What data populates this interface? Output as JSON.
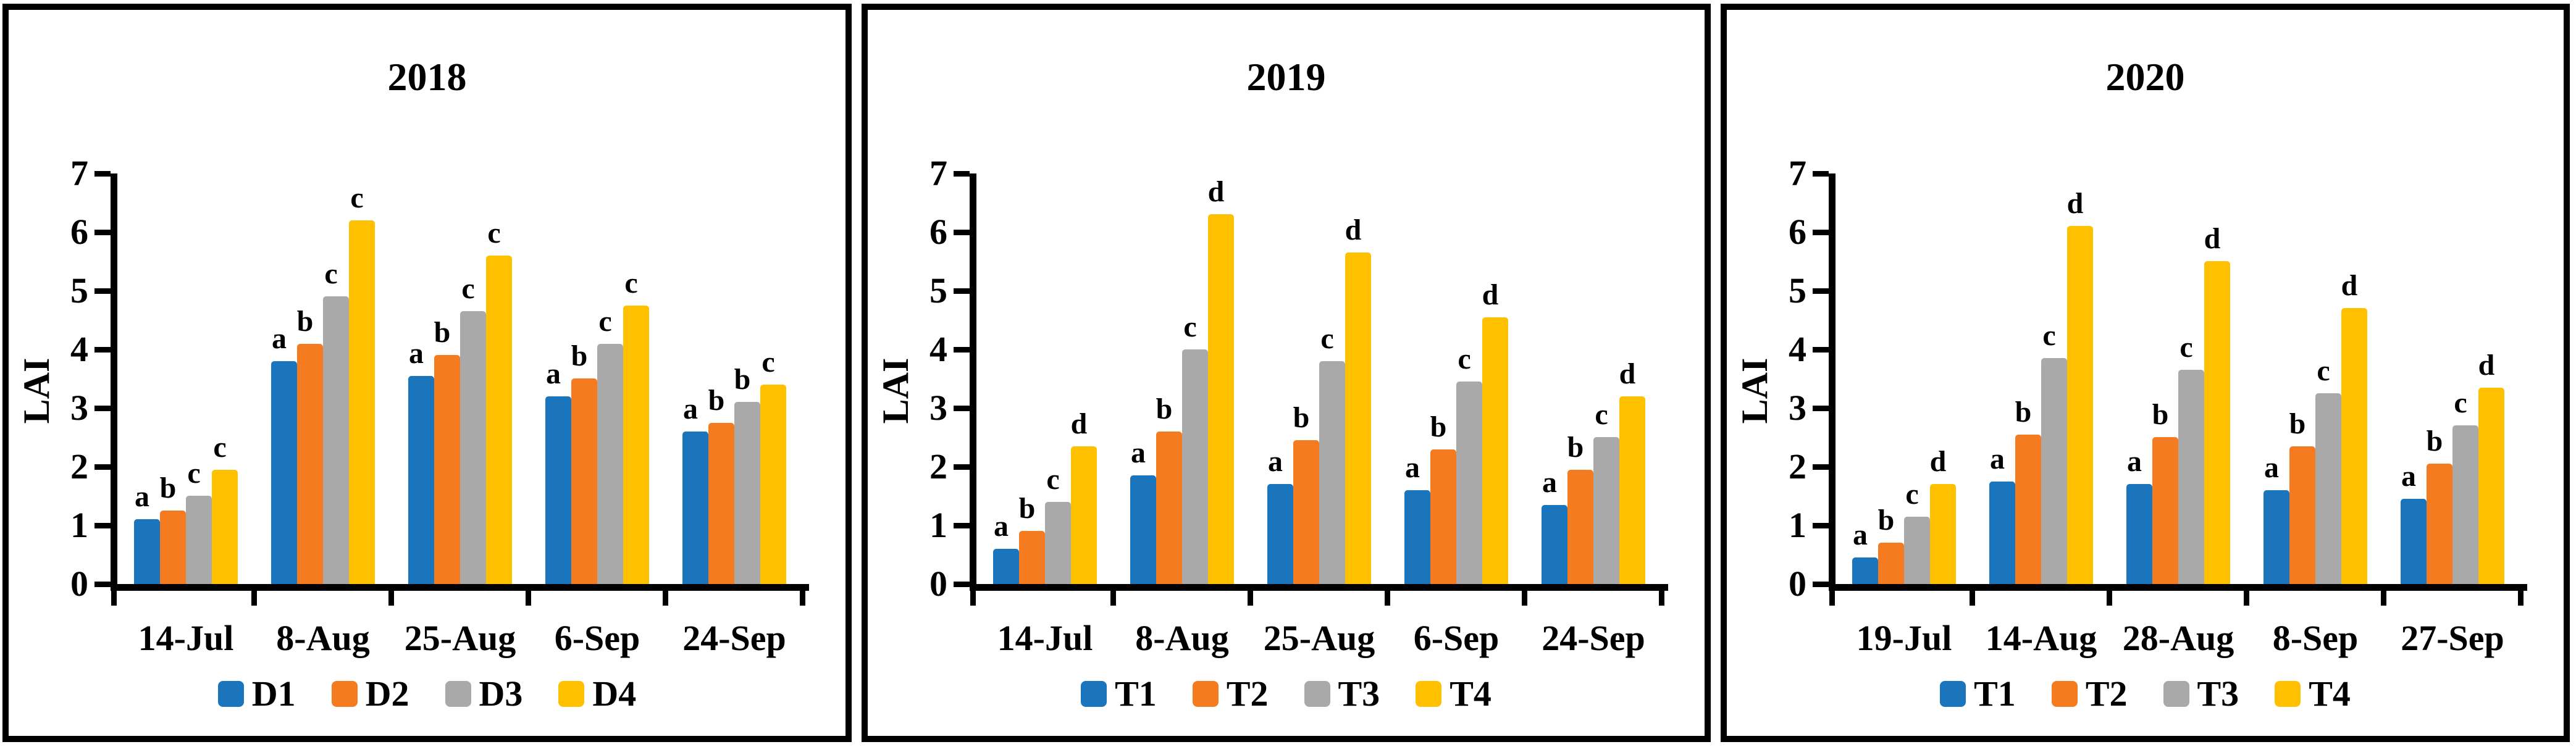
{
  "page": {
    "background": "#ffffff"
  },
  "colors": {
    "series": [
      "#1B75BC",
      "#F47B20",
      "#A9A9A9",
      "#FFC000"
    ],
    "axis": "#000000",
    "text": "#000000"
  },
  "chart_data": [
    {
      "type": "bar",
      "title": "2018",
      "ylabel": "LAI",
      "xlabel": "",
      "ylim": [
        0,
        7
      ],
      "yticks": [
        0,
        1,
        2,
        3,
        4,
        5,
        6,
        7
      ],
      "grid": false,
      "legend_position": "bottom",
      "categories": [
        "14-Jul",
        "8-Aug",
        "25-Aug",
        "6-Sep",
        "24-Sep"
      ],
      "series": [
        {
          "name": "D1",
          "values": [
            1.1,
            3.8,
            3.55,
            3.2,
            2.6
          ]
        },
        {
          "name": "D2",
          "values": [
            1.25,
            4.1,
            3.9,
            3.5,
            2.75
          ]
        },
        {
          "name": "D3",
          "values": [
            1.5,
            4.9,
            4.65,
            4.1,
            3.1
          ]
        },
        {
          "name": "D4",
          "values": [
            1.95,
            6.2,
            5.6,
            4.75,
            3.4
          ]
        }
      ],
      "sig_letters": [
        [
          "a",
          "b",
          "c",
          "c"
        ],
        [
          "a",
          "b",
          "c",
          "c"
        ],
        [
          "a",
          "b",
          "c",
          "c"
        ],
        [
          "a",
          "b",
          "c",
          "c"
        ],
        [
          "a",
          "b",
          "b",
          "c"
        ]
      ]
    },
    {
      "type": "bar",
      "title": "2019",
      "ylabel": "LAI",
      "xlabel": "",
      "ylim": [
        0,
        7
      ],
      "yticks": [
        0,
        1,
        2,
        3,
        4,
        5,
        6,
        7
      ],
      "grid": false,
      "legend_position": "bottom",
      "categories": [
        "14-Jul",
        "8-Aug",
        "25-Aug",
        "6-Sep",
        "24-Sep"
      ],
      "series": [
        {
          "name": "T1",
          "values": [
            0.6,
            1.85,
            1.7,
            1.6,
            1.35
          ]
        },
        {
          "name": "T2",
          "values": [
            0.9,
            2.6,
            2.45,
            2.3,
            1.95
          ]
        },
        {
          "name": "T3",
          "values": [
            1.4,
            4.0,
            3.8,
            3.45,
            2.5
          ]
        },
        {
          "name": "T4",
          "values": [
            2.35,
            6.3,
            5.65,
            4.55,
            3.2
          ]
        }
      ],
      "sig_letters": [
        [
          "a",
          "b",
          "c",
          "d"
        ],
        [
          "a",
          "b",
          "c",
          "d"
        ],
        [
          "a",
          "b",
          "c",
          "d"
        ],
        [
          "a",
          "b",
          "c",
          "d"
        ],
        [
          "a",
          "b",
          "c",
          "d"
        ]
      ]
    },
    {
      "type": "bar",
      "title": "2020",
      "ylabel": "LAI",
      "xlabel": "",
      "ylim": [
        0,
        7
      ],
      "yticks": [
        0,
        1,
        2,
        3,
        4,
        5,
        6,
        7
      ],
      "grid": false,
      "legend_position": "bottom",
      "categories": [
        "19-Jul",
        "14-Aug",
        "28-Aug",
        "8-Sep",
        "27-Sep"
      ],
      "series": [
        {
          "name": "T1",
          "values": [
            0.45,
            1.75,
            1.7,
            1.6,
            1.45
          ]
        },
        {
          "name": "T2",
          "values": [
            0.7,
            2.55,
            2.5,
            2.35,
            2.05
          ]
        },
        {
          "name": "T3",
          "values": [
            1.15,
            3.85,
            3.65,
            3.25,
            2.7
          ]
        },
        {
          "name": "T4",
          "values": [
            1.7,
            6.1,
            5.5,
            4.7,
            3.35
          ]
        }
      ],
      "sig_letters": [
        [
          "a",
          "b",
          "c",
          "d"
        ],
        [
          "a",
          "b",
          "c",
          "d"
        ],
        [
          "a",
          "b",
          "c",
          "d"
        ],
        [
          "a",
          "b",
          "c",
          "d"
        ],
        [
          "a",
          "b",
          "c",
          "d"
        ]
      ]
    }
  ]
}
